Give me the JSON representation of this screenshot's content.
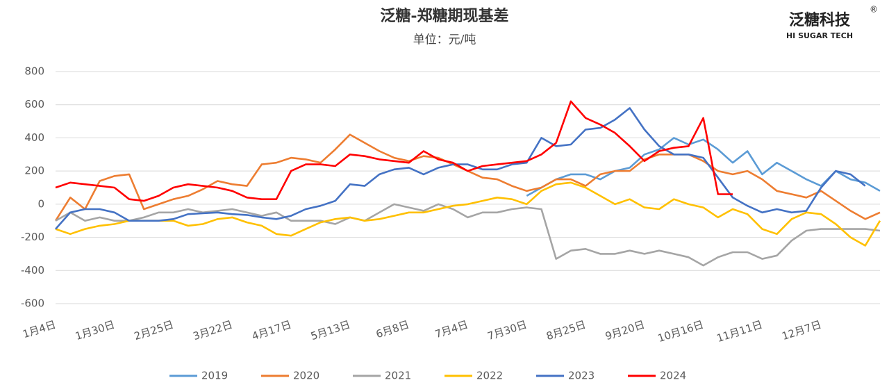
{
  "chart_data": {
    "type": "line",
    "title": "泛糖-郑糖期现基差",
    "subtitle": "单位：元/吨",
    "categories": [
      "1月4日",
      null,
      null,
      null,
      "1月30日",
      null,
      null,
      null,
      "2月25日",
      null,
      null,
      null,
      "3月22日",
      null,
      null,
      null,
      "4月17日",
      null,
      null,
      null,
      "5月13日",
      null,
      null,
      null,
      "6月8日",
      null,
      null,
      null,
      "7月4日",
      null,
      null,
      null,
      "7月30日",
      null,
      null,
      null,
      "8月25日",
      null,
      null,
      null,
      "9月20日",
      null,
      null,
      null,
      "10月16日",
      null,
      null,
      null,
      "11月11日",
      null,
      null,
      null,
      "12月7日",
      null,
      null,
      null,
      null
    ],
    "ylim": [
      -600,
      800
    ],
    "yticks": [
      -600,
      -400,
      -200,
      0,
      200,
      400,
      600,
      800
    ],
    "grid": true,
    "legend": "bottom",
    "series": [
      {
        "name": "2019",
        "color": "#5b9bd5",
        "values": [
          null,
          null,
          null,
          null,
          null,
          null,
          null,
          null,
          null,
          null,
          null,
          null,
          null,
          null,
          null,
          null,
          null,
          null,
          null,
          null,
          null,
          null,
          null,
          null,
          null,
          null,
          null,
          null,
          null,
          null,
          null,
          null,
          50,
          100,
          150,
          180,
          180,
          150,
          200,
          220,
          300,
          330,
          400,
          360,
          390,
          330,
          250,
          320,
          180,
          250,
          200,
          150,
          110,
          200,
          150,
          130,
          80
        ]
      },
      {
        "name": "2020",
        "color": "#ed7d31",
        "values": [
          -100,
          40,
          -30,
          140,
          170,
          180,
          -30,
          0,
          30,
          50,
          90,
          140,
          120,
          110,
          240,
          250,
          280,
          270,
          250,
          330,
          420,
          370,
          320,
          280,
          260,
          290,
          280,
          240,
          200,
          160,
          150,
          110,
          80,
          100,
          150,
          150,
          110,
          180,
          200,
          200,
          270,
          300,
          300,
          300,
          260,
          200,
          180,
          200,
          150,
          80,
          60,
          40,
          80,
          20,
          -40,
          -90,
          -50
        ]
      },
      {
        "name": "2021",
        "color": "#a5a5a5",
        "values": [
          -100,
          -50,
          -100,
          -80,
          -100,
          -100,
          -80,
          -50,
          -50,
          -30,
          -50,
          -40,
          -30,
          -50,
          -70,
          -50,
          -100,
          -100,
          -100,
          -120,
          -80,
          -100,
          -50,
          0,
          -20,
          -40,
          0,
          -30,
          -80,
          -50,
          -50,
          -30,
          -20,
          -30,
          -330,
          -280,
          -270,
          -300,
          -300,
          -280,
          -300,
          -280,
          -300,
          -320,
          -370,
          -320,
          -290,
          -290,
          -330,
          -310,
          -220,
          -160,
          -150,
          -150,
          -150,
          -150,
          -160
        ]
      },
      {
        "name": "2022",
        "color": "#ffc000",
        "values": [
          -150,
          -180,
          -150,
          -130,
          -120,
          -100,
          -100,
          -100,
          -100,
          -130,
          -120,
          -90,
          -80,
          -110,
          -130,
          -180,
          -190,
          -150,
          -110,
          -90,
          -80,
          -100,
          -90,
          -70,
          -50,
          -50,
          -30,
          -10,
          0,
          20,
          40,
          30,
          0,
          80,
          120,
          130,
          100,
          50,
          0,
          30,
          -20,
          -30,
          30,
          0,
          -20,
          -80,
          -30,
          -60,
          -150,
          -180,
          -90,
          -50,
          -60,
          -120,
          -200,
          -250,
          -100
        ]
      },
      {
        "name": "2023",
        "color": "#4472c4",
        "values": [
          -150,
          -50,
          -30,
          -30,
          -50,
          -100,
          -100,
          -100,
          -90,
          -60,
          -55,
          -50,
          -60,
          -65,
          -80,
          -90,
          -70,
          -30,
          -10,
          20,
          120,
          110,
          180,
          210,
          220,
          180,
          220,
          240,
          240,
          210,
          210,
          240,
          250,
          400,
          350,
          360,
          450,
          460,
          510,
          580,
          450,
          350,
          300,
          300,
          280,
          160,
          40,
          -10,
          -50,
          -30,
          -50,
          -40,
          100,
          200,
          180,
          110,
          null
        ]
      },
      {
        "name": "2024",
        "color": "#ff0000",
        "values": [
          100,
          130,
          120,
          110,
          100,
          30,
          20,
          50,
          100,
          120,
          110,
          100,
          80,
          40,
          30,
          30,
          200,
          240,
          240,
          230,
          300,
          290,
          270,
          260,
          250,
          320,
          270,
          250,
          200,
          230,
          240,
          250,
          260,
          300,
          370,
          620,
          520,
          480,
          430,
          350,
          260,
          320,
          340,
          350,
          520,
          60,
          60,
          null,
          null,
          null,
          null,
          null,
          null,
          null,
          null,
          null,
          null
        ]
      }
    ]
  },
  "logo": {
    "name": "泛糖科技",
    "subtitle": "HI SUGAR TECH",
    "mark": "®"
  }
}
